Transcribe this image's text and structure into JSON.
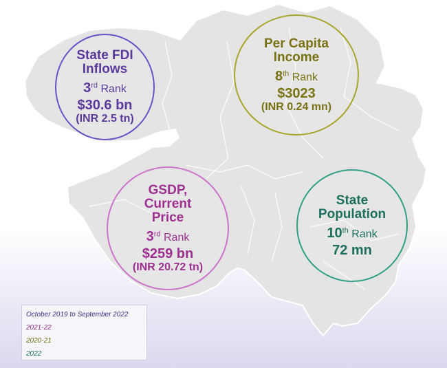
{
  "colors": {
    "fdi": "#6a4fc7",
    "pci": "#a7a52a",
    "gsdp": "#cc74c9",
    "population": "#2e9f84",
    "map_fill": "#e4e4e4",
    "map_stroke": "#ffffff"
  },
  "fdi": {
    "title_line1": "State FDI",
    "title_line2": "Inflows",
    "rank_num": "3",
    "rank_suffix": "rd",
    "rank_word": "Rank",
    "value": "$30.6 bn",
    "sub": "(INR 2.5 tn)"
  },
  "pci": {
    "title_line1": "Per Capita",
    "title_line2": "Income",
    "rank_num": "8",
    "rank_suffix": "th",
    "rank_word": "Rank",
    "value": "$3023",
    "sub": "(INR 0.24 mn)"
  },
  "gsdp": {
    "title_line1": "GSDP,",
    "title_line2": "Current",
    "title_line3": "Price",
    "rank_num": "3",
    "rank_suffix": "rd",
    "rank_word": "Rank",
    "value": "$259 bn",
    "sub": "(INR 20.72 tn)"
  },
  "population": {
    "title_line1": "State",
    "title_line2": "Population",
    "rank_num": "10",
    "rank_suffix": "th",
    "rank_word": "Rank",
    "value": "72 mn"
  },
  "legend": {
    "fdi_period": "October 2019 to September 2022",
    "gsdp_period": "2021-22",
    "pci_period": "2020-21",
    "population_period": "2022"
  }
}
